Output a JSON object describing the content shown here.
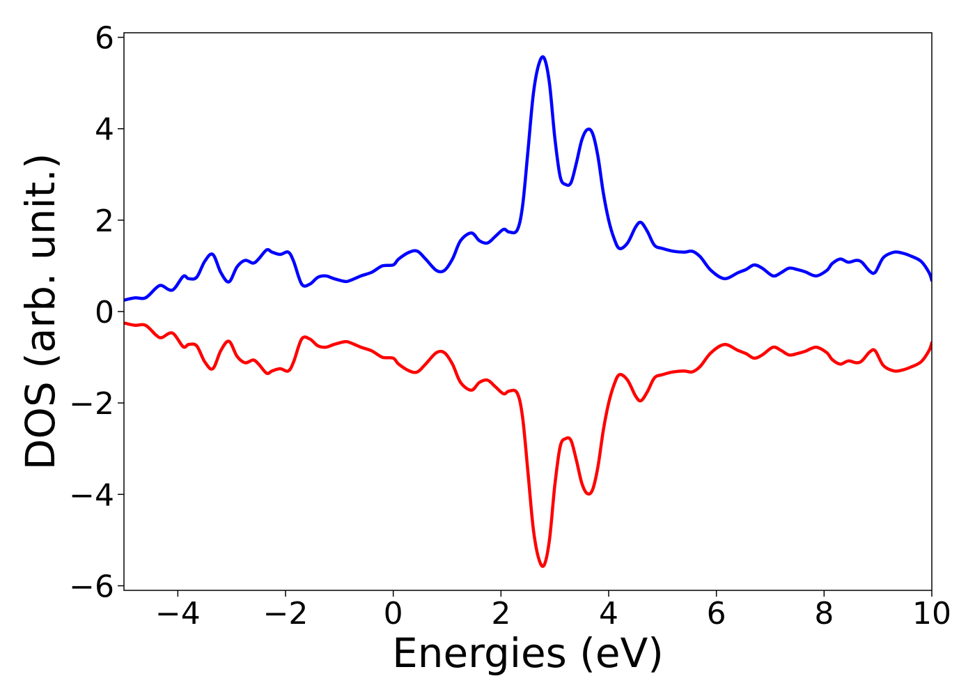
{
  "chart_data": {
    "type": "line",
    "xlabel": "Energies (eV)",
    "ylabel": "DOS (arb. unit.)",
    "xlim": [
      -5,
      10
    ],
    "ylim": [
      -6.1,
      6.1
    ],
    "xticks": [
      -4,
      -2,
      0,
      2,
      4,
      6,
      8,
      10
    ],
    "xtick_labels": [
      "−4",
      "−2",
      "0",
      "2",
      "4",
      "6",
      "8",
      "10"
    ],
    "yticks": [
      -6,
      -4,
      -2,
      0,
      2,
      4,
      6
    ],
    "ytick_labels": [
      "−6",
      "−4",
      "−2",
      "0",
      "2",
      "4",
      "6"
    ],
    "grid": false,
    "legend": "none",
    "colors": {
      "spin_up": "#0000ff",
      "spin_down": "#ff0000"
    },
    "x": [
      -5.0,
      -4.8,
      -4.6,
      -4.4,
      -4.3,
      -4.1,
      -3.9,
      -3.8,
      -3.65,
      -3.5,
      -3.35,
      -3.2,
      -3.05,
      -2.9,
      -2.75,
      -2.6,
      -2.5,
      -2.35,
      -2.25,
      -2.1,
      -1.95,
      -1.85,
      -1.7,
      -1.55,
      -1.4,
      -1.25,
      -1.1,
      -0.9,
      -0.8,
      -0.6,
      -0.4,
      -0.2,
      0.0,
      0.1,
      0.3,
      0.45,
      0.6,
      0.8,
      0.95,
      1.1,
      1.25,
      1.45,
      1.6,
      1.75,
      1.9,
      2.05,
      2.15,
      2.3,
      2.4,
      2.5,
      2.6,
      2.7,
      2.8,
      2.9,
      3.0,
      3.1,
      3.2,
      3.3,
      3.4,
      3.5,
      3.6,
      3.7,
      3.8,
      3.9,
      4.0,
      4.1,
      4.2,
      4.35,
      4.5,
      4.6,
      4.72,
      4.85,
      5.0,
      5.2,
      5.4,
      5.55,
      5.7,
      5.9,
      6.15,
      6.4,
      6.55,
      6.7,
      6.85,
      7.05,
      7.2,
      7.35,
      7.5,
      7.65,
      7.85,
      8.05,
      8.15,
      8.3,
      8.45,
      8.6,
      8.7,
      8.85,
      8.95,
      9.1,
      9.3,
      9.45,
      9.6,
      9.8,
      9.95,
      10.0
    ],
    "series": [
      {
        "values": [
          0.25,
          0.3,
          0.3,
          0.52,
          0.57,
          0.47,
          0.77,
          0.72,
          0.75,
          1.1,
          1.25,
          0.85,
          0.65,
          0.98,
          1.12,
          1.06,
          1.15,
          1.35,
          1.3,
          1.25,
          1.3,
          1.1,
          0.6,
          0.6,
          0.75,
          0.78,
          0.72,
          0.66,
          0.68,
          0.78,
          0.86,
          1.0,
          1.02,
          1.15,
          1.3,
          1.32,
          1.15,
          0.9,
          0.9,
          1.15,
          1.55,
          1.72,
          1.55,
          1.5,
          1.65,
          1.8,
          1.74,
          1.78,
          2.3,
          3.5,
          4.75,
          5.4,
          5.55,
          5.0,
          3.8,
          2.95,
          2.78,
          2.82,
          3.25,
          3.75,
          3.98,
          3.9,
          3.4,
          2.6,
          2.0,
          1.6,
          1.38,
          1.5,
          1.85,
          1.95,
          1.75,
          1.45,
          1.38,
          1.32,
          1.3,
          1.32,
          1.2,
          0.9,
          0.72,
          0.85,
          0.92,
          1.02,
          0.95,
          0.78,
          0.85,
          0.95,
          0.92,
          0.87,
          0.78,
          0.9,
          1.05,
          1.15,
          1.08,
          1.12,
          1.08,
          0.88,
          0.86,
          1.18,
          1.3,
          1.28,
          1.22,
          1.1,
          0.85,
          0.68
        ]
      },
      {
        "values": [
          -0.25,
          -0.3,
          -0.3,
          -0.52,
          -0.57,
          -0.47,
          -0.77,
          -0.72,
          -0.75,
          -1.1,
          -1.25,
          -0.85,
          -0.65,
          -0.98,
          -1.12,
          -1.06,
          -1.15,
          -1.35,
          -1.3,
          -1.25,
          -1.3,
          -1.1,
          -0.6,
          -0.6,
          -0.75,
          -0.78,
          -0.72,
          -0.66,
          -0.68,
          -0.78,
          -0.86,
          -1.0,
          -1.02,
          -1.15,
          -1.3,
          -1.32,
          -1.15,
          -0.9,
          -0.9,
          -1.15,
          -1.55,
          -1.72,
          -1.55,
          -1.5,
          -1.65,
          -1.8,
          -1.74,
          -1.78,
          -2.3,
          -3.5,
          -4.75,
          -5.4,
          -5.55,
          -5.0,
          -3.8,
          -2.95,
          -2.78,
          -2.82,
          -3.25,
          -3.75,
          -3.98,
          -3.9,
          -3.4,
          -2.6,
          -2.0,
          -1.6,
          -1.38,
          -1.5,
          -1.85,
          -1.95,
          -1.75,
          -1.45,
          -1.38,
          -1.32,
          -1.3,
          -1.32,
          -1.2,
          -0.9,
          -0.72,
          -0.85,
          -0.92,
          -1.02,
          -0.95,
          -0.78,
          -0.85,
          -0.95,
          -0.92,
          -0.87,
          -0.78,
          -0.9,
          -1.05,
          -1.15,
          -1.08,
          -1.12,
          -1.08,
          -0.88,
          -0.86,
          -1.18,
          -1.3,
          -1.28,
          -1.22,
          -1.1,
          -0.85,
          -0.68
        ]
      }
    ]
  }
}
